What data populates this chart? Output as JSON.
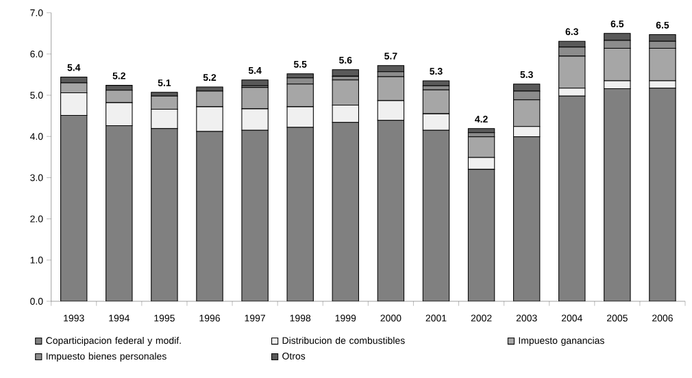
{
  "chart_data": {
    "type": "bar",
    "stacked": true,
    "categories": [
      "1993",
      "1994",
      "1995",
      "1996",
      "1997",
      "1998",
      "1999",
      "2000",
      "2001",
      "2002",
      "2003",
      "2004",
      "2005",
      "2006"
    ],
    "series": [
      {
        "name": "Coparticipacion federal y modif.",
        "color": "#808080",
        "values": [
          4.51,
          4.26,
          4.19,
          4.12,
          4.15,
          4.22,
          4.34,
          4.39,
          4.15,
          3.2,
          3.99,
          4.98,
          5.16,
          5.17
        ]
      },
      {
        "name": "Distribucion de combustibles",
        "color": "#f0f0f0",
        "values": [
          0.55,
          0.56,
          0.47,
          0.6,
          0.52,
          0.5,
          0.42,
          0.48,
          0.4,
          0.29,
          0.25,
          0.19,
          0.19,
          0.18
        ]
      },
      {
        "name": "Impuesto ganancias",
        "color": "#a6a6a6",
        "values": [
          0.24,
          0.3,
          0.32,
          0.38,
          0.52,
          0.55,
          0.61,
          0.58,
          0.58,
          0.5,
          0.65,
          0.78,
          0.79,
          0.79
        ]
      },
      {
        "name": "Impuesto bienes personales",
        "color": "#8c8c8c",
        "values": [
          null,
          null,
          null,
          null,
          0.04,
          0.15,
          0.09,
          0.12,
          0.1,
          0.1,
          0.21,
          0.22,
          0.19,
          0.17
        ]
      },
      {
        "name": "Otros",
        "color": "#595959",
        "values": [
          0.14,
          0.12,
          0.09,
          0.1,
          0.14,
          0.1,
          0.16,
          0.15,
          0.12,
          0.1,
          0.17,
          0.14,
          0.17,
          0.16
        ]
      }
    ],
    "totals": [
      "5.4",
      "5.2",
      "5.1",
      "5.2",
      "5.4",
      "5.5",
      "5.6",
      "5.7",
      "5.3",
      "4.2",
      "5.3",
      "6.3",
      "6.5",
      "6.5"
    ],
    "ylim": [
      0,
      7
    ],
    "yticks": [
      {
        "value": 0,
        "label": "0.0"
      },
      {
        "value": 1,
        "label": "1.0"
      },
      {
        "value": 2,
        "label": "2.0"
      },
      {
        "value": 3,
        "label": "3.0"
      },
      {
        "value": 4,
        "label": "4.0"
      },
      {
        "value": 5,
        "label": "5.0"
      },
      {
        "value": 6,
        "label": "6.0"
      },
      {
        "value": 7,
        "label": "7.0"
      }
    ],
    "legend": "bottom"
  }
}
